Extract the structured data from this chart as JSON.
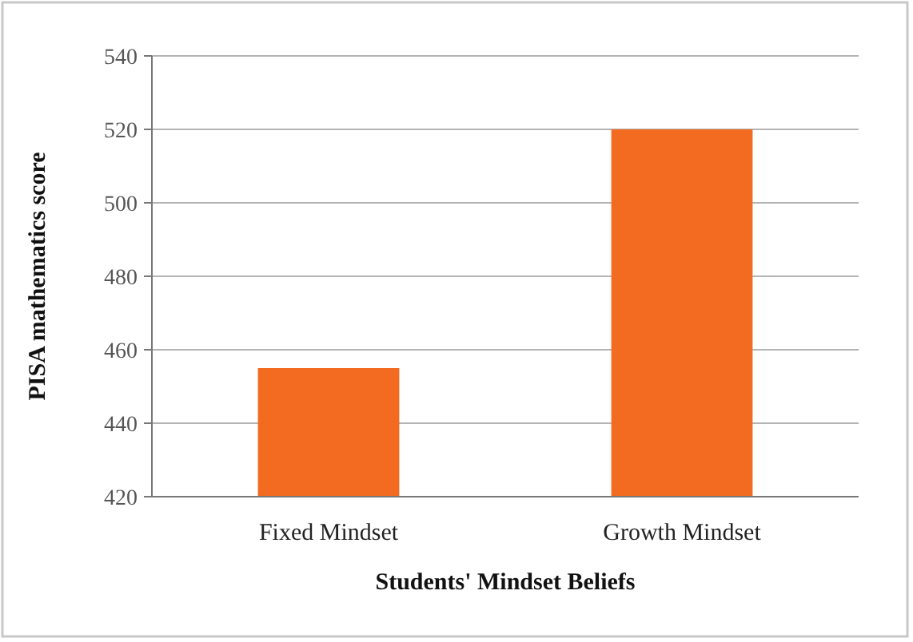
{
  "chart_data": {
    "type": "bar",
    "xlabel": "Students' Mindset Beliefs",
    "ylabel": "PISA mathematics score",
    "categories": [
      "Fixed Mindset",
      "Growth Mindset"
    ],
    "values": [
      455,
      520
    ],
    "color": "#f26b21",
    "ylim": [
      420,
      540
    ],
    "yticks": [
      420,
      440,
      460,
      480,
      500,
      520,
      540
    ],
    "grid": "y"
  }
}
